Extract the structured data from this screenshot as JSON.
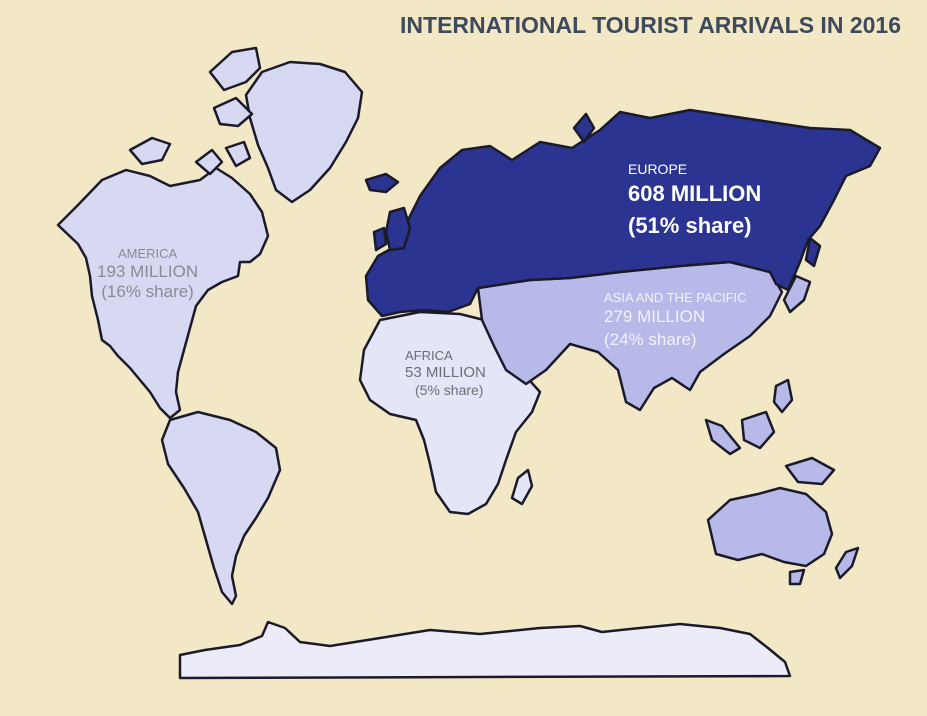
{
  "title": "INTERNATIONAL TOURIST ARRIVALS IN 2016",
  "colors": {
    "background": "#f3e8c6",
    "europe": "#2b3490",
    "asia_pacific": "#b7b9e8",
    "america": "#d7d9f3",
    "africa": "#e4e5f6",
    "antarctica": "#ececf8",
    "outline": "#1a1a2a",
    "title": "#3e4a5c"
  },
  "regions": [
    {
      "id": "america",
      "region": "AMERICA",
      "arrivals": "193 MILLION",
      "share": "(16% share)",
      "share_pct": 16
    },
    {
      "id": "africa",
      "region": "AFRICA",
      "arrivals": "53 MILLION",
      "share": "(5% share)",
      "share_pct": 5
    },
    {
      "id": "europe",
      "region": "EUROPE",
      "arrivals": "608 MILLION",
      "share": "(51% share)",
      "share_pct": 51
    },
    {
      "id": "asia",
      "region": "ASIA AND THE PACIFIC",
      "arrivals": "279 MILLION",
      "share": "(24% share)",
      "share_pct": 24
    }
  ]
}
